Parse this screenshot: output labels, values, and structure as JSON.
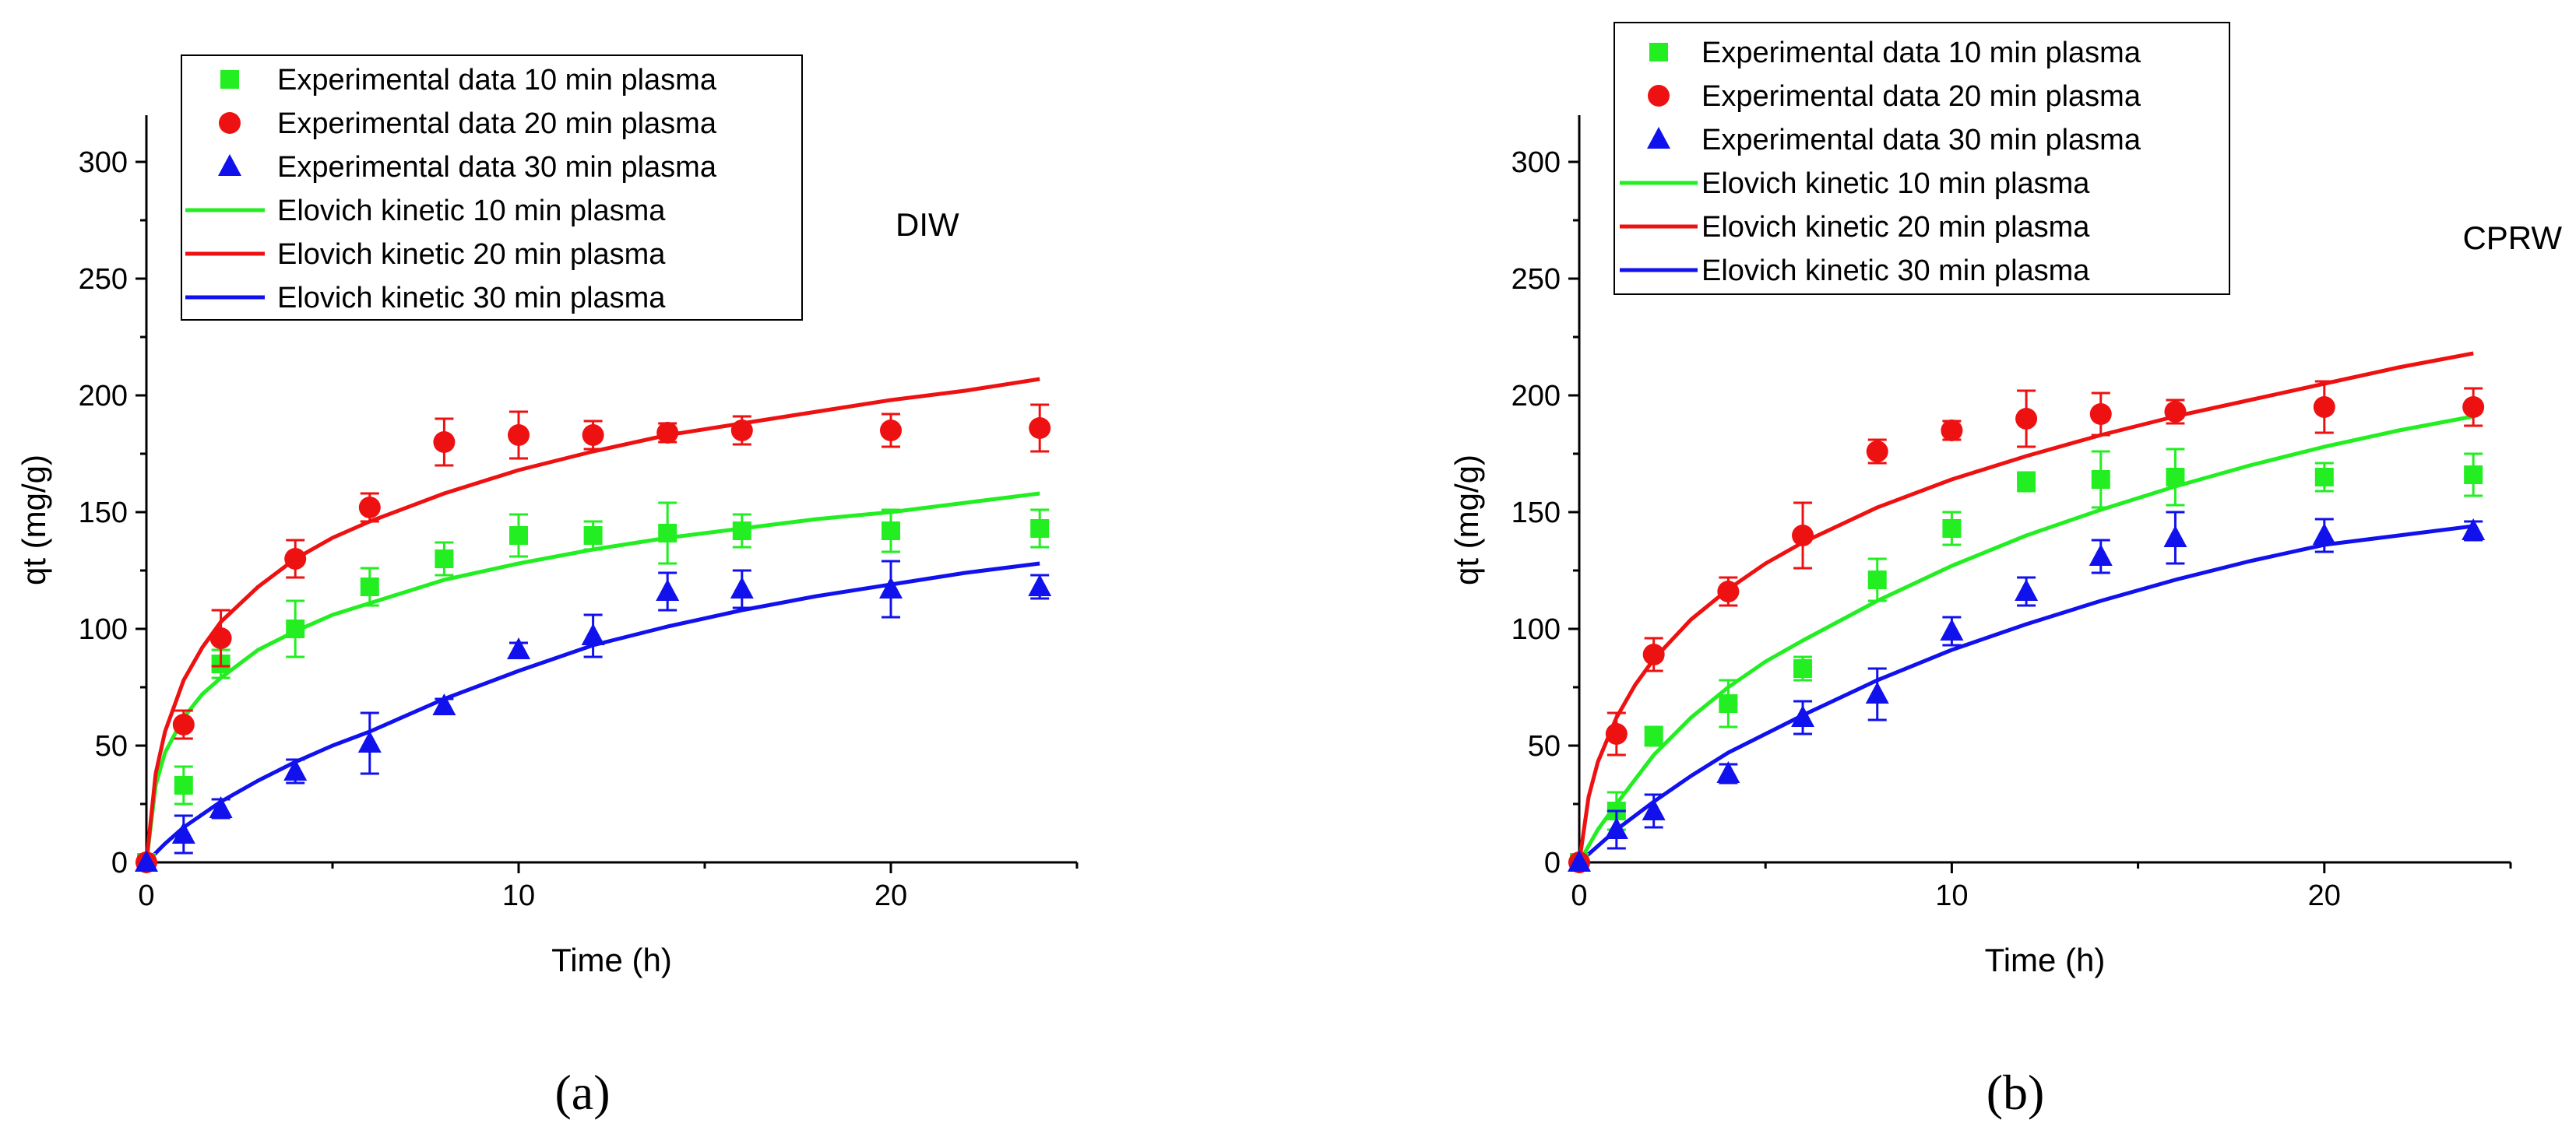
{
  "figure": {
    "panel_labels": [
      "(a)",
      "(b)"
    ]
  },
  "chart_data": [
    {
      "type": "scatter",
      "panel": "(a)",
      "annotation": "DIW",
      "title": "",
      "xlabel": "Time (h)",
      "ylabel": "qt (mg/g)",
      "xlim": [
        0,
        25
      ],
      "ylim": [
        0,
        320
      ],
      "xticks": [
        0,
        10,
        20
      ],
      "yticks": [
        0,
        50,
        100,
        150,
        200,
        250,
        300
      ],
      "legend_position": "top-left",
      "series": [
        {
          "name": "Experimental data 10 min plasma",
          "kind": "points",
          "marker": "square",
          "color": "#22ee22",
          "x": [
            0,
            1,
            2,
            4,
            6,
            8,
            10,
            12,
            14,
            16,
            20,
            24
          ],
          "y": [
            0,
            33,
            85,
            100,
            118,
            130,
            140,
            140,
            141,
            142,
            142,
            143
          ],
          "err": [
            0,
            8,
            6,
            12,
            8,
            7,
            9,
            6,
            13,
            7,
            9,
            8
          ]
        },
        {
          "name": "Experimental data 20 min plasma",
          "kind": "points",
          "marker": "circle",
          "color": "#ee1111",
          "x": [
            0,
            1,
            2,
            4,
            6,
            8,
            10,
            12,
            14,
            16,
            20,
            24
          ],
          "y": [
            0,
            59,
            96,
            130,
            152,
            180,
            183,
            183,
            184,
            185,
            185,
            186
          ],
          "err": [
            0,
            6,
            12,
            8,
            6,
            10,
            10,
            6,
            4,
            6,
            7,
            10
          ]
        },
        {
          "name": "Experimental data 30 min plasma",
          "kind": "points",
          "marker": "triangle",
          "color": "#1111ee",
          "x": [
            0,
            1,
            2,
            4,
            6,
            8,
            10,
            12,
            14,
            16,
            20,
            24
          ],
          "y": [
            0,
            12,
            23,
            39,
            51,
            67,
            91,
            97,
            116,
            117,
            117,
            118
          ],
          "err": [
            0,
            8,
            4,
            5,
            13,
            3,
            3,
            9,
            8,
            8,
            12,
            5
          ]
        },
        {
          "name": "Elovich kinetic 10 min plasma",
          "kind": "line",
          "color": "#22ee22",
          "x": [
            0,
            0.25,
            0.5,
            1,
            1.5,
            2,
            3,
            4,
            5,
            6,
            8,
            10,
            12,
            14,
            16,
            18,
            20,
            22,
            24
          ],
          "y": [
            0,
            33,
            47,
            62,
            72,
            79,
            91,
            99,
            106,
            111,
            121,
            128,
            134,
            139,
            143,
            147,
            150,
            154,
            158
          ]
        },
        {
          "name": "Elovich kinetic 20 min plasma",
          "kind": "line",
          "color": "#ee1111",
          "x": [
            0,
            0.25,
            0.5,
            1,
            1.5,
            2,
            3,
            4,
            5,
            6,
            8,
            10,
            12,
            14,
            16,
            18,
            20,
            22,
            24
          ],
          "y": [
            0,
            38,
            56,
            78,
            92,
            103,
            118,
            130,
            139,
            146,
            158,
            168,
            176,
            183,
            188,
            193,
            198,
            202,
            207
          ]
        },
        {
          "name": "Elovich kinetic 30 min plasma",
          "kind": "line",
          "color": "#1111ee",
          "x": [
            0,
            0.5,
            1,
            2,
            3,
            4,
            5,
            6,
            8,
            10,
            12,
            14,
            16,
            18,
            20,
            22,
            24
          ],
          "y": [
            0,
            8,
            15,
            26,
            35,
            43,
            50,
            56,
            70,
            82,
            93,
            101,
            108,
            114,
            119,
            124,
            128
          ]
        }
      ]
    },
    {
      "type": "scatter",
      "panel": "(b)",
      "annotation": "CPRW",
      "title": "",
      "xlabel": "Time (h)",
      "ylabel": "qt (mg/g)",
      "xlim": [
        0,
        25
      ],
      "ylim": [
        0,
        320
      ],
      "xticks": [
        0,
        10,
        20
      ],
      "yticks": [
        0,
        50,
        100,
        150,
        200,
        250,
        300
      ],
      "legend_position": "top-center",
      "series": [
        {
          "name": "Experimental data 10 min plasma",
          "kind": "points",
          "marker": "square",
          "color": "#22ee22",
          "x": [
            0,
            1,
            2,
            4,
            6,
            8,
            10,
            12,
            14,
            16,
            20,
            24
          ],
          "y": [
            0,
            22,
            54,
            68,
            83,
            121,
            143,
            163,
            164,
            165,
            165,
            166
          ],
          "err": [
            0,
            8,
            4,
            10,
            5,
            9,
            7,
            4,
            12,
            12,
            6,
            9
          ]
        },
        {
          "name": "Experimental data 20 min plasma",
          "kind": "points",
          "marker": "circle",
          "color": "#ee1111",
          "x": [
            0,
            1,
            2,
            4,
            6,
            8,
            10,
            12,
            14,
            16,
            20,
            24
          ],
          "y": [
            0,
            55,
            89,
            116,
            140,
            176,
            185,
            190,
            192,
            193,
            195,
            195
          ],
          "err": [
            0,
            9,
            7,
            6,
            14,
            5,
            4,
            12,
            9,
            5,
            11,
            8
          ]
        },
        {
          "name": "Experimental data 30 min plasma",
          "kind": "points",
          "marker": "triangle",
          "color": "#1111ee",
          "x": [
            0,
            1,
            2,
            4,
            6,
            8,
            10,
            12,
            14,
            16,
            20,
            24
          ],
          "y": [
            0,
            14,
            22,
            38,
            62,
            72,
            99,
            116,
            131,
            139,
            140,
            142
          ],
          "err": [
            0,
            8,
            7,
            4,
            7,
            11,
            6,
            6,
            7,
            11,
            7,
            4
          ]
        },
        {
          "name": "Elovich kinetic 10 min plasma",
          "kind": "line",
          "color": "#22ee22",
          "x": [
            0,
            0.5,
            1,
            2,
            3,
            4,
            5,
            6,
            8,
            10,
            12,
            14,
            16,
            18,
            20,
            22,
            24
          ],
          "y": [
            0,
            14,
            25,
            46,
            62,
            75,
            86,
            95,
            112,
            127,
            140,
            151,
            161,
            170,
            178,
            185,
            191
          ]
        },
        {
          "name": "Elovich kinetic 20 min plasma",
          "kind": "line",
          "color": "#ee1111",
          "x": [
            0,
            0.25,
            0.5,
            1,
            1.5,
            2,
            3,
            4,
            5,
            6,
            8,
            10,
            12,
            14,
            16,
            18,
            20,
            22,
            24
          ],
          "y": [
            0,
            28,
            43,
            62,
            76,
            87,
            104,
            117,
            128,
            137,
            152,
            164,
            174,
            183,
            191,
            198,
            205,
            212,
            218
          ]
        },
        {
          "name": "Elovich kinetic 30 min plasma",
          "kind": "line",
          "color": "#1111ee",
          "x": [
            0,
            0.5,
            1,
            2,
            3,
            4,
            5,
            6,
            8,
            10,
            12,
            14,
            16,
            18,
            20,
            22,
            24
          ],
          "y": [
            0,
            7,
            14,
            26,
            37,
            47,
            55,
            63,
            78,
            91,
            102,
            112,
            121,
            129,
            136,
            140,
            144
          ]
        }
      ]
    }
  ]
}
